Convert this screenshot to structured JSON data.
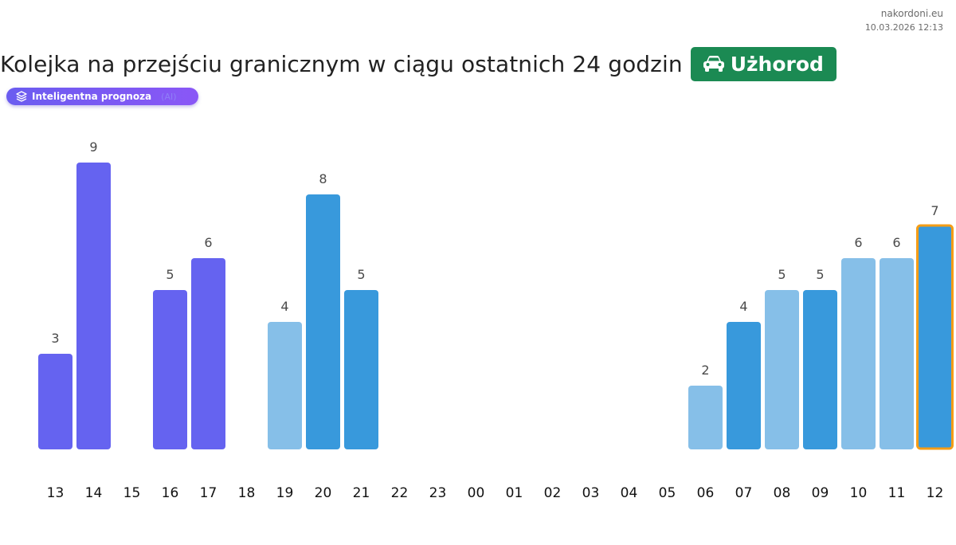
{
  "source": {
    "site": "nakordoni.eu",
    "datetime": "10.03.2026 12:13"
  },
  "header": {
    "title": "Kolejka na przejściu granicznym w ciągu ostatnich 24 godzin",
    "location_badge": "Użhorod",
    "location_icon": "car-icon"
  },
  "forecast_pill": {
    "label": "Inteligentna prognoza",
    "tag": "(AI)"
  },
  "colors": {
    "forecast": "#6563f0",
    "dark": "#3899dc",
    "light": "#86bfe8",
    "highlight_border": "#f59d16",
    "badge": "#1b8a53"
  },
  "chart_data": {
    "type": "bar",
    "categories": [
      "13",
      "14",
      "15",
      "16",
      "17",
      "18",
      "19",
      "20",
      "21",
      "22",
      "23",
      "00",
      "01",
      "02",
      "03",
      "04",
      "05",
      "06",
      "07",
      "08",
      "09",
      "10",
      "11",
      "12"
    ],
    "values": [
      3,
      9,
      null,
      5,
      6,
      null,
      4,
      8,
      5,
      null,
      null,
      null,
      null,
      null,
      null,
      null,
      null,
      2,
      4,
      5,
      5,
      6,
      6,
      7
    ],
    "bar_colors": [
      "forecast",
      "forecast",
      null,
      "forecast",
      "forecast",
      null,
      "light",
      "dark",
      "dark",
      null,
      null,
      null,
      null,
      null,
      null,
      null,
      null,
      "light",
      "dark",
      "light",
      "dark",
      "light",
      "light",
      "dark"
    ],
    "highlighted_index": 23,
    "title": "",
    "xlabel": "",
    "ylabel": "",
    "ylim": [
      0,
      9
    ],
    "grid": false,
    "legend": "none"
  }
}
